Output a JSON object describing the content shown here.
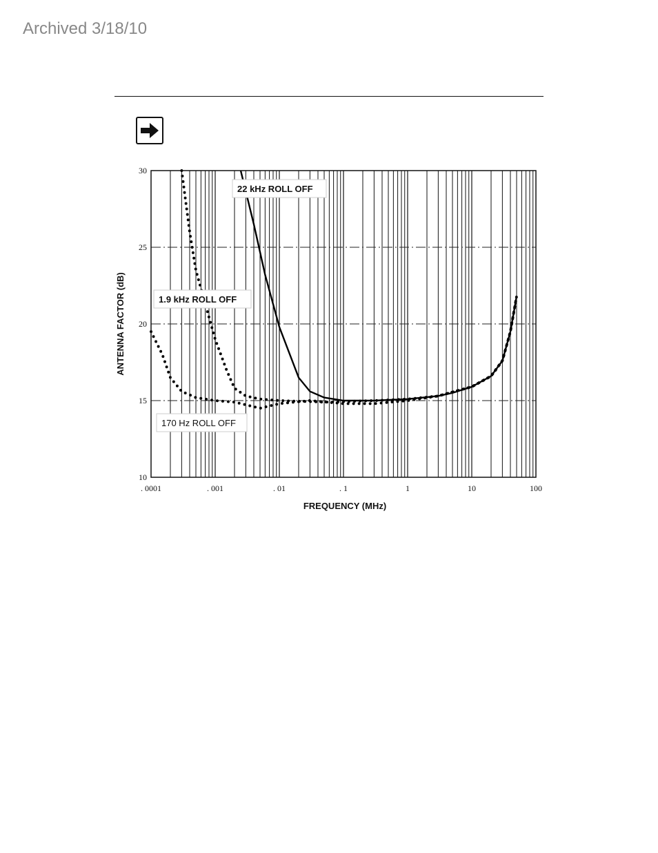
{
  "header": {
    "archived_label": "Archived 3/18/10"
  },
  "icon": {
    "name": "arrow-right-icon"
  },
  "chart_data": {
    "type": "line",
    "title": "",
    "xlabel": "FREQUENCY (MHz)",
    "ylabel": "ANTENNA FACTOR (dB)",
    "x_scale": "log",
    "xlim": [
      0.0001,
      100
    ],
    "ylim": [
      10,
      30
    ],
    "x_ticks": [
      0.0001,
      0.001,
      0.01,
      0.1,
      1,
      10,
      100
    ],
    "x_tick_labels": [
      ". 0001",
      ". 001",
      ". 01",
      ". 1",
      "1",
      "10",
      "100"
    ],
    "y_ticks": [
      10,
      15,
      20,
      25,
      30
    ],
    "y_tick_labels": [
      "10",
      "15",
      "20",
      "25",
      "30"
    ],
    "grid": "vertical log lines; dash-dot horizontal lines at 15, 20, 25",
    "series": [
      {
        "name": "22 kHz ROLL OFF",
        "style": "solid",
        "x": [
          0.0025,
          0.004,
          0.006,
          0.01,
          0.02,
          0.03,
          0.05,
          0.1,
          0.3,
          1,
          3,
          5,
          10,
          20,
          30,
          40,
          50
        ],
        "y": [
          30,
          26.5,
          23.2,
          19.8,
          16.5,
          15.6,
          15.2,
          15.0,
          15.0,
          15.1,
          15.3,
          15.5,
          15.9,
          16.6,
          17.6,
          19.5,
          21.8
        ]
      },
      {
        "name": "1.9 kHz ROLL OFF",
        "style": "dotted",
        "x": [
          0.0003,
          0.0004,
          0.0005,
          0.0007,
          0.001,
          0.0015,
          0.002,
          0.003,
          0.005,
          0.01,
          0.05,
          0.3,
          1,
          3,
          10,
          20,
          30,
          40,
          50
        ],
        "y": [
          30,
          26,
          23.5,
          21.3,
          19.0,
          17.0,
          15.8,
          15.3,
          15.1,
          15.0,
          14.9,
          15.0,
          15.1,
          15.3,
          15.9,
          16.6,
          17.6,
          19.5,
          21.8
        ]
      },
      {
        "name": "170 Hz ROLL OFF",
        "style": "dotted",
        "x": [
          0.0001,
          0.00015,
          0.0002,
          0.0003,
          0.0005,
          0.001,
          0.002,
          0.005,
          0.01,
          0.03,
          0.1,
          0.3,
          1,
          3,
          10,
          20,
          30,
          40,
          50
        ],
        "y": [
          19.5,
          18.0,
          16.5,
          15.6,
          15.2,
          15.0,
          14.9,
          14.5,
          14.8,
          15.0,
          14.8,
          14.8,
          15.0,
          15.3,
          15.9,
          16.6,
          17.6,
          19.5,
          21.8
        ]
      }
    ],
    "annotations": [
      {
        "text": "22 kHz ROLL OFF",
        "series": "22 kHz ROLL OFF",
        "bold": true
      },
      {
        "text": "1.9 kHz ROLL OFF",
        "series": "1.9 kHz ROLL OFF",
        "bold": true
      },
      {
        "text": "170 Hz ROLL OFF",
        "series": "170 Hz ROLL OFF",
        "bold": false
      }
    ]
  }
}
